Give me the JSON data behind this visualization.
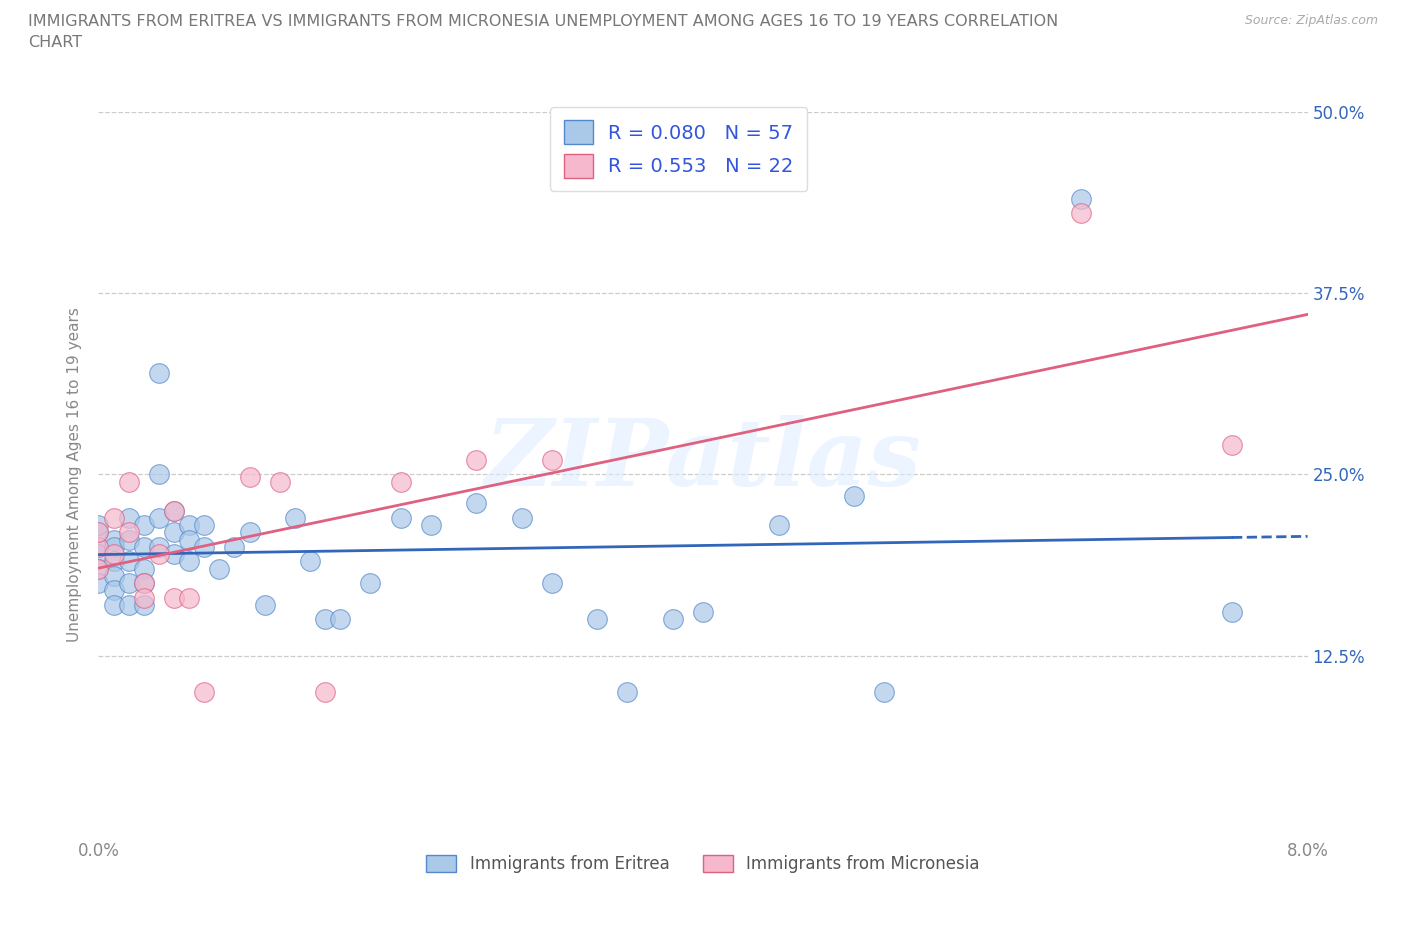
{
  "title_line1": "IMMIGRANTS FROM ERITREA VS IMMIGRANTS FROM MICRONESIA UNEMPLOYMENT AMONG AGES 16 TO 19 YEARS CORRELATION",
  "title_line2": "CHART",
  "source": "Source: ZipAtlas.com",
  "ylabel": "Unemployment Among Ages 16 to 19 years",
  "xlim": [
    0.0,
    0.08
  ],
  "ylim": [
    0.0,
    0.5
  ],
  "R_eritrea": 0.08,
  "N_eritrea": 57,
  "R_micronesia": 0.553,
  "N_micronesia": 22,
  "color_eritrea": "#aac8e8",
  "color_micronesia": "#f5b8cc",
  "edge_eritrea": "#5588cc",
  "edge_micronesia": "#e06080",
  "line_color_eritrea": "#3366bb",
  "line_color_micronesia": "#e06080",
  "rval_color": "#3355dd",
  "watermark": "ZIPatlas",
  "scatter_eritrea_x": [
    0.0,
    0.0,
    0.0,
    0.0,
    0.0,
    0.0,
    0.001,
    0.001,
    0.001,
    0.001,
    0.001,
    0.001,
    0.002,
    0.002,
    0.002,
    0.002,
    0.002,
    0.003,
    0.003,
    0.003,
    0.003,
    0.003,
    0.004,
    0.004,
    0.004,
    0.004,
    0.005,
    0.005,
    0.005,
    0.006,
    0.006,
    0.006,
    0.007,
    0.007,
    0.008,
    0.009,
    0.01,
    0.011,
    0.013,
    0.014,
    0.015,
    0.016,
    0.018,
    0.02,
    0.022,
    0.025,
    0.028,
    0.03,
    0.033,
    0.035,
    0.038,
    0.04,
    0.045,
    0.05,
    0.052,
    0.065,
    0.075
  ],
  "scatter_eritrea_y": [
    0.2,
    0.21,
    0.215,
    0.195,
    0.185,
    0.175,
    0.205,
    0.2,
    0.19,
    0.18,
    0.17,
    0.16,
    0.22,
    0.205,
    0.19,
    0.175,
    0.16,
    0.215,
    0.2,
    0.185,
    0.175,
    0.16,
    0.32,
    0.25,
    0.22,
    0.2,
    0.225,
    0.21,
    0.195,
    0.215,
    0.205,
    0.19,
    0.215,
    0.2,
    0.185,
    0.2,
    0.21,
    0.16,
    0.22,
    0.19,
    0.15,
    0.15,
    0.175,
    0.22,
    0.215,
    0.23,
    0.22,
    0.175,
    0.15,
    0.1,
    0.15,
    0.155,
    0.215,
    0.235,
    0.1,
    0.44,
    0.155
  ],
  "scatter_micronesia_x": [
    0.0,
    0.0,
    0.0,
    0.001,
    0.001,
    0.002,
    0.002,
    0.003,
    0.003,
    0.004,
    0.005,
    0.005,
    0.006,
    0.007,
    0.01,
    0.012,
    0.015,
    0.02,
    0.025,
    0.03,
    0.065,
    0.075
  ],
  "scatter_micronesia_y": [
    0.2,
    0.21,
    0.185,
    0.22,
    0.195,
    0.245,
    0.21,
    0.175,
    0.165,
    0.195,
    0.225,
    0.165,
    0.165,
    0.1,
    0.248,
    0.245,
    0.1,
    0.245,
    0.26,
    0.26,
    0.43,
    0.27
  ]
}
